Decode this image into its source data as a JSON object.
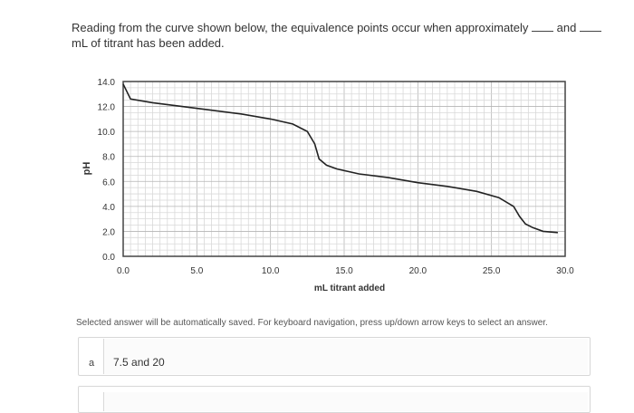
{
  "question": {
    "text_before": "Reading from the curve shown below, the equivalence points occur when approximately",
    "text_and": "and",
    "text_unit": "mL",
    "text_after": "of titrant has been added."
  },
  "chart_data": {
    "type": "line",
    "title": "",
    "xlabel": "mL titrant added",
    "ylabel": "pH",
    "xlim": [
      0,
      30
    ],
    "ylim": [
      0,
      14
    ],
    "x_ticks": [
      "0.0",
      "5.0",
      "10.0",
      "15.0",
      "20.0",
      "25.0",
      "30.0"
    ],
    "y_ticks": [
      "0.0",
      "2.0",
      "4.0",
      "6.0",
      "8.0",
      "10.0",
      "12.0",
      "14.0"
    ],
    "grid": true,
    "series": [
      {
        "color": "#222222",
        "x": [
          0,
          0.5,
          2,
          4,
          6,
          8,
          10,
          11.5,
          12.5,
          13,
          13.3,
          13.8,
          14.5,
          16,
          18,
          20,
          22,
          24,
          25.5,
          26.5,
          26.9,
          27.3,
          27.8,
          28.5,
          29.5
        ],
        "y": [
          13.8,
          12.6,
          12.3,
          12.0,
          11.7,
          11.4,
          11.0,
          10.6,
          10.0,
          9.0,
          7.8,
          7.3,
          7.0,
          6.6,
          6.3,
          5.9,
          5.6,
          5.2,
          4.7,
          4.0,
          3.2,
          2.6,
          2.3,
          2.0,
          1.9
        ]
      }
    ]
  },
  "notice": "Selected answer will be automatically saved. For keyboard navigation, press up/down arrow keys to select an answer.",
  "answers": [
    {
      "letter": "a",
      "text": "7.5 and 20"
    },
    {
      "letter": "",
      "text": ""
    }
  ]
}
